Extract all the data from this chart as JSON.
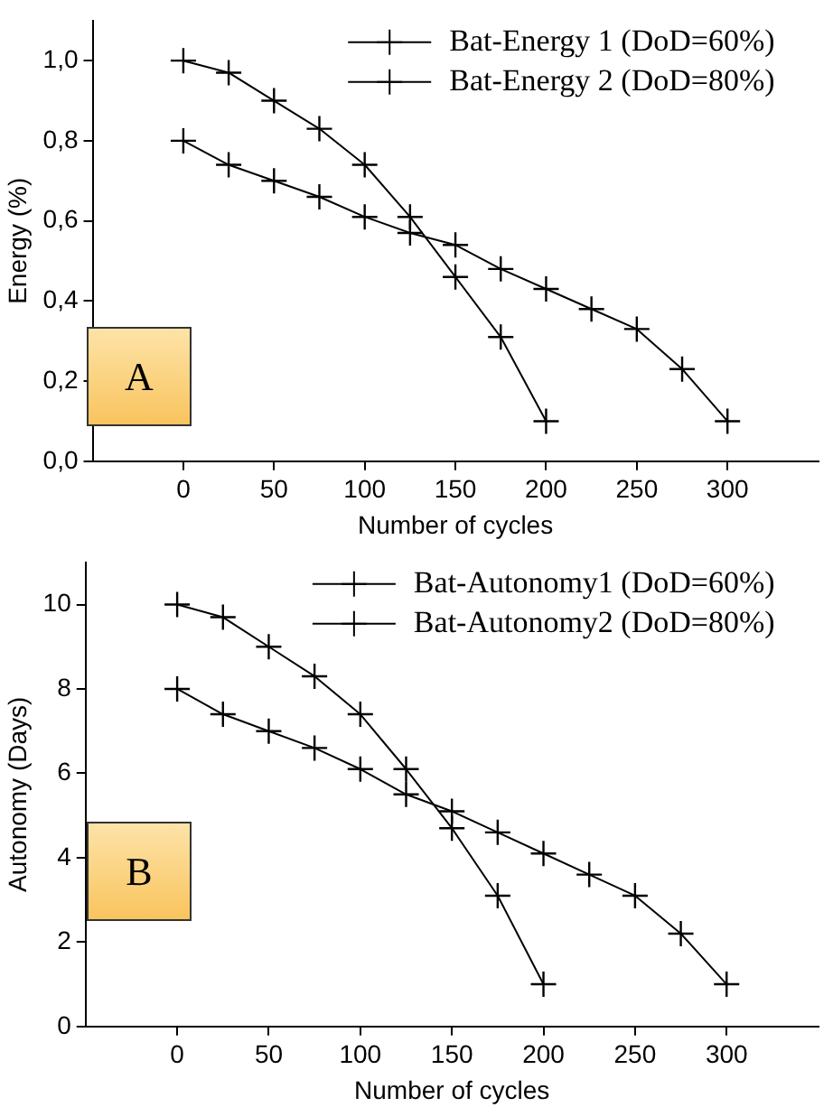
{
  "chart_data": [
    {
      "type": "line",
      "xlabel": "Number of cycles",
      "ylabel": "Energy (%)",
      "annotations": [
        "A"
      ],
      "x": [
        0,
        25,
        50,
        75,
        100,
        125,
        150,
        175,
        200,
        225,
        250,
        275,
        300
      ],
      "series": [
        {
          "name": "Bat-Energy 1 (DoD=60%)",
          "color": "#000000",
          "marker": "cross",
          "values": [
            0.8,
            0.74,
            0.7,
            0.66,
            0.61,
            0.57,
            0.54,
            0.48,
            0.43,
            0.38,
            0.33,
            0.23,
            0.1
          ]
        },
        {
          "name": "Bat-Energy 2 (DoD=80%)",
          "color": "#000000",
          "marker": "cross",
          "values": [
            1.0,
            0.97,
            0.9,
            0.83,
            0.74,
            0.61,
            0.46,
            0.31,
            0.1,
            null,
            null,
            null,
            null
          ]
        }
      ],
      "xlim": [
        -50,
        350
      ],
      "xticks": [
        0,
        50,
        100,
        150,
        200,
        250,
        300
      ],
      "ylim": [
        0,
        1.1
      ],
      "yticks": [
        {
          "value": 0,
          "label": "0,0"
        },
        {
          "value": 0.2,
          "label": "0,2"
        },
        {
          "value": 0.4,
          "label": "0,4"
        },
        {
          "value": 0.6,
          "label": "0,6"
        },
        {
          "value": 0.8,
          "label": "0,8"
        },
        {
          "value": 1.0,
          "label": "1,0"
        }
      ],
      "grid": false,
      "legend": "top right",
      "line_style": "solid"
    },
    {
      "type": "line",
      "xlabel": "Number of cycles",
      "ylabel": "Autonomy (Days)",
      "annotations": [
        "B"
      ],
      "x": [
        0,
        25,
        50,
        75,
        100,
        125,
        150,
        175,
        200,
        225,
        250,
        275,
        300
      ],
      "series": [
        {
          "name": "Bat-Autonomy1 (DoD=60%)",
          "color": "#000000",
          "marker": "cross",
          "values": [
            8.0,
            7.4,
            7.0,
            6.6,
            6.1,
            5.5,
            5.1,
            4.6,
            4.1,
            3.6,
            3.1,
            2.2,
            1.0
          ]
        },
        {
          "name": "Bat-Autonomy2 (DoD=80%)",
          "color": "#000000",
          "marker": "cross",
          "values": [
            10.0,
            9.7,
            9.0,
            8.3,
            7.4,
            6.1,
            4.7,
            3.1,
            1.0,
            null,
            null,
            null,
            null
          ]
        }
      ],
      "xlim": [
        -50,
        350
      ],
      "xticks": [
        0,
        50,
        100,
        150,
        200,
        250,
        300
      ],
      "ylim": [
        0,
        11
      ],
      "yticks": [
        0,
        2,
        4,
        6,
        8,
        10
      ],
      "grid": false,
      "legend": "top right",
      "line_style": "solid"
    }
  ]
}
